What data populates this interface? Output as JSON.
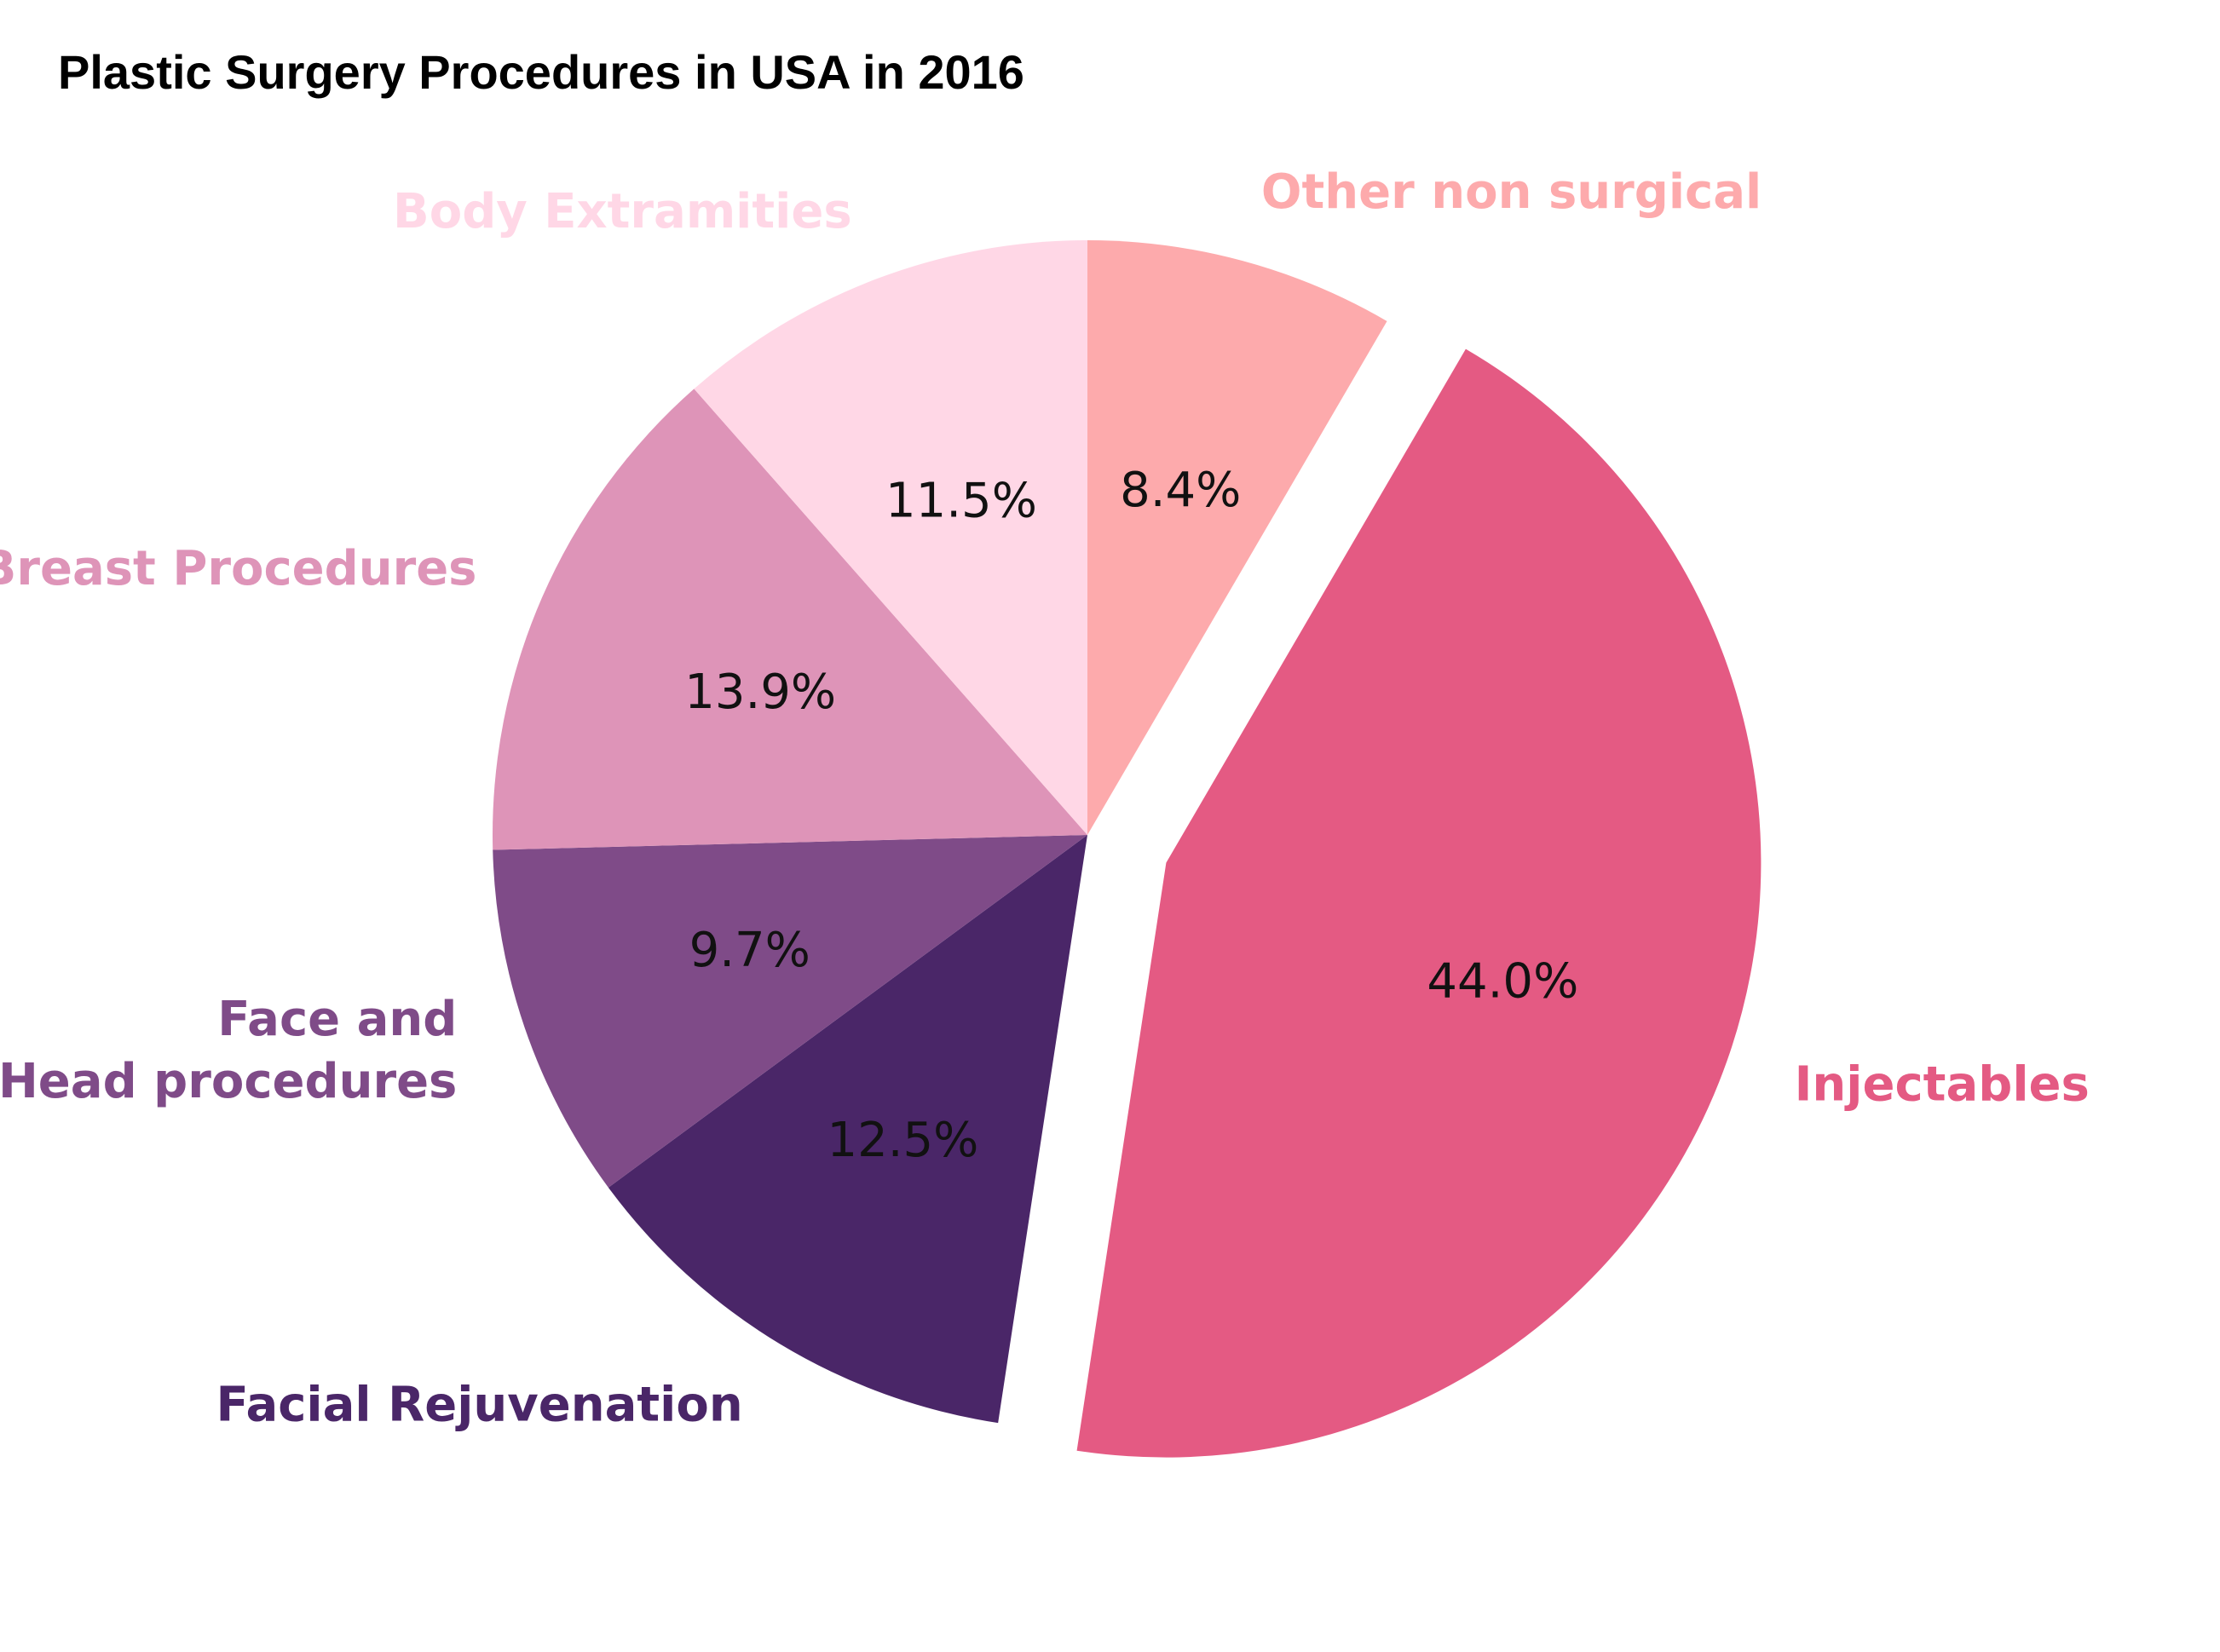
{
  "chart_data": {
    "type": "pie",
    "title": "Plastic Surgery Procedures in USA in 2016",
    "slices": [
      {
        "label": "Other non surgical",
        "lines": [
          "Other non surgical"
        ],
        "value": 8.4,
        "pct_label": "8.4%",
        "color": "#fdaaac",
        "exploded": false
      },
      {
        "label": "Injectables",
        "lines": [
          "Injectables"
        ],
        "value": 44.0,
        "pct_label": "44.0%",
        "color": "#e45a83",
        "exploded": true
      },
      {
        "label": "Facial Rejuvenation",
        "lines": [
          "Facial Rejuvenation"
        ],
        "value": 12.5,
        "pct_label": "12.5%",
        "color": "#4a2668",
        "exploded": false
      },
      {
        "label": "Face and Head procedures",
        "lines": [
          "Face and",
          "Head procedures"
        ],
        "value": 9.7,
        "pct_label": "9.7%",
        "color": "#7f4b88",
        "exploded": false
      },
      {
        "label": "Breast Procedures",
        "lines": [
          "Breast Procedures"
        ],
        "value": 13.9,
        "pct_label": "13.9%",
        "color": "#de94b8",
        "exploded": false
      },
      {
        "label": "Body Extramities",
        "lines": [
          "Body Extramities"
        ],
        "value": 11.5,
        "pct_label": "11.5%",
        "color": "#ffd7e6",
        "exploded": false
      }
    ],
    "start_angle_deg": 90,
    "direction": "clockwise",
    "legend": "none"
  }
}
